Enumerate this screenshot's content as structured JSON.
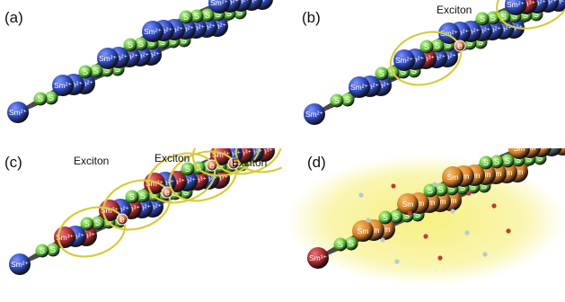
{
  "panels": [
    {
      "label": "(a)"
    },
    {
      "label": "(b)"
    },
    {
      "label": "(c)"
    },
    {
      "label": "(d)"
    }
  ],
  "labels": {
    "sm2": "Sm²⁺",
    "sm3": "Sm³⁺",
    "sm": "Sm",
    "s": "S",
    "electron": "e",
    "exciton": "Exciton"
  },
  "colors": {
    "sm2": "#2b45b8",
    "sm3": "#a8262a",
    "sm_orange": "#d9802a",
    "sulfur": "#5fc23a",
    "bond": "#4a4a4a",
    "exciton_ring": "#d8cc3a",
    "electron": "#e06a3c",
    "glow": "#f6ef7a"
  },
  "panel_a": {
    "sites": [
      "Sm²⁺",
      "S",
      "Sm²⁺",
      "S",
      "Sm²⁺",
      "S",
      "Sm²⁺",
      "S",
      "Sm²⁺",
      "S",
      "Sm²⁺",
      "S",
      "Sm²⁺",
      "S",
      "Sm²⁺",
      "S",
      "Sm²⁺",
      "S",
      "Sm²⁺",
      "S",
      "Sm²⁺",
      "S",
      "Sm²⁺",
      "S",
      "Sm²⁺"
    ]
  },
  "panel_b": {
    "exciton_label": "Exciton",
    "excited_ions": 2
  },
  "panel_c": {
    "exciton_labels": [
      "Exciton",
      "Exciton",
      "Exciton"
    ]
  }
}
